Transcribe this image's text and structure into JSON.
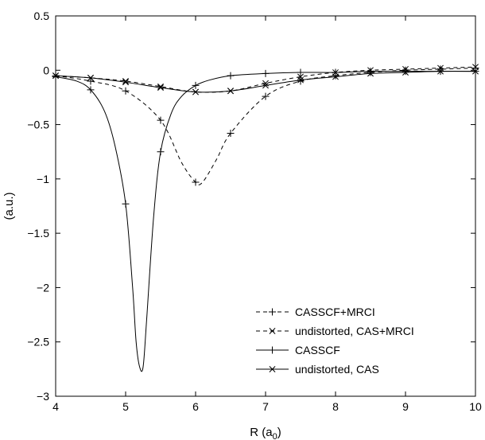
{
  "chart_data": {
    "type": "line",
    "title": "",
    "xlabel": "R (a",
    "xlabel_sub": "0",
    "xlabel_close": ")",
    "ylabel": "(a.u.)",
    "xlim": [
      4,
      10
    ],
    "ylim": [
      -3,
      0.5
    ],
    "grid": false,
    "legend_position": "lower-right",
    "x_ticks": [
      4,
      5,
      6,
      7,
      8,
      9,
      10
    ],
    "x_tick_labels": [
      "4",
      "5",
      "6",
      "7",
      "8",
      "9",
      "10"
    ],
    "y_ticks": [
      0.5,
      0,
      -0.5,
      -1,
      -1.5,
      -2,
      -2.5,
      -3
    ],
    "y_tick_labels": [
      "0.5",
      "0",
      "−0.5",
      "−1",
      "−1.5",
      "−2",
      "−2.5",
      "−3"
    ],
    "series": [
      {
        "name": "CASSCF+MRCI",
        "line": "dashed",
        "marker": "plus",
        "x": [
          4.0,
          4.5,
          5.0,
          5.5,
          5.8,
          6.0,
          6.1,
          6.3,
          6.5,
          7.0,
          7.5,
          8.0,
          8.5,
          9.0,
          9.5,
          10.0
        ],
        "y": [
          -0.05,
          -0.1,
          -0.19,
          -0.46,
          -0.85,
          -1.03,
          -1.03,
          -0.82,
          -0.58,
          -0.24,
          -0.1,
          -0.05,
          -0.02,
          0.0,
          0.01,
          0.02
        ],
        "marker_x": [
          4.0,
          4.5,
          5.0,
          5.5,
          6.0,
          6.5,
          7.0,
          7.5,
          8.0,
          8.5,
          9.0,
          9.5,
          10.0
        ],
        "marker_y": [
          -0.05,
          -0.1,
          -0.19,
          -0.46,
          -1.03,
          -0.58,
          -0.24,
          -0.1,
          -0.05,
          -0.02,
          0.0,
          0.01,
          0.02
        ]
      },
      {
        "name": "undistorted, CAS+MRCI",
        "line": "dashed",
        "marker": "cross",
        "x": [
          4.0,
          4.5,
          5.0,
          5.5,
          6.0,
          6.5,
          7.0,
          7.5,
          8.0,
          8.5,
          9.0,
          9.5,
          10.0
        ],
        "y": [
          -0.05,
          -0.07,
          -0.1,
          -0.15,
          -0.2,
          -0.19,
          -0.12,
          -0.06,
          -0.02,
          0.0,
          0.01,
          0.02,
          0.03
        ],
        "marker_x": [
          4.0,
          4.5,
          5.0,
          5.5,
          6.0,
          6.5,
          7.0,
          7.5,
          8.0,
          8.5,
          9.0,
          9.5,
          10.0
        ],
        "marker_y": [
          -0.05,
          -0.07,
          -0.1,
          -0.15,
          -0.2,
          -0.19,
          -0.12,
          -0.06,
          -0.02,
          0.0,
          0.01,
          0.02,
          0.03
        ]
      },
      {
        "name": "CASSCF",
        "line": "solid",
        "marker": "plus",
        "x": [
          4.0,
          4.3,
          4.5,
          4.7,
          4.85,
          5.0,
          5.1,
          5.15,
          5.2,
          5.25,
          5.3,
          5.4,
          5.5,
          5.65,
          5.8,
          6.0,
          6.2,
          6.5,
          7.0,
          7.5,
          8.0,
          8.5,
          9.0,
          9.5,
          10.0
        ],
        "y": [
          -0.06,
          -0.1,
          -0.18,
          -0.38,
          -0.7,
          -1.23,
          -2.0,
          -2.5,
          -2.73,
          -2.73,
          -2.3,
          -1.35,
          -0.75,
          -0.4,
          -0.24,
          -0.14,
          -0.09,
          -0.05,
          -0.03,
          -0.02,
          -0.02,
          -0.01,
          -0.01,
          -0.01,
          -0.01
        ],
        "marker_x": [
          4.0,
          4.5,
          5.0,
          5.5,
          6.0,
          6.5,
          7.0,
          7.5,
          8.0,
          8.5,
          9.0,
          9.5,
          10.0
        ],
        "marker_y": [
          -0.06,
          -0.18,
          -1.23,
          -0.75,
          -0.14,
          -0.05,
          -0.03,
          -0.02,
          -0.02,
          -0.01,
          -0.01,
          -0.01,
          -0.01
        ]
      },
      {
        "name": "undistorted, CAS",
        "line": "solid",
        "marker": "cross",
        "x": [
          4.0,
          4.5,
          5.0,
          5.5,
          6.0,
          6.5,
          7.0,
          7.5,
          8.0,
          8.5,
          9.0,
          9.5,
          10.0
        ],
        "y": [
          -0.05,
          -0.07,
          -0.11,
          -0.16,
          -0.2,
          -0.19,
          -0.14,
          -0.09,
          -0.06,
          -0.03,
          -0.02,
          -0.01,
          -0.01
        ],
        "marker_x": [
          4.0,
          4.5,
          5.0,
          5.5,
          6.0,
          6.5,
          7.0,
          7.5,
          8.0,
          8.5,
          9.0,
          9.5,
          10.0
        ],
        "marker_y": [
          -0.05,
          -0.07,
          -0.11,
          -0.16,
          -0.2,
          -0.19,
          -0.14,
          -0.09,
          -0.06,
          -0.03,
          -0.02,
          -0.01,
          -0.01
        ]
      }
    ]
  }
}
